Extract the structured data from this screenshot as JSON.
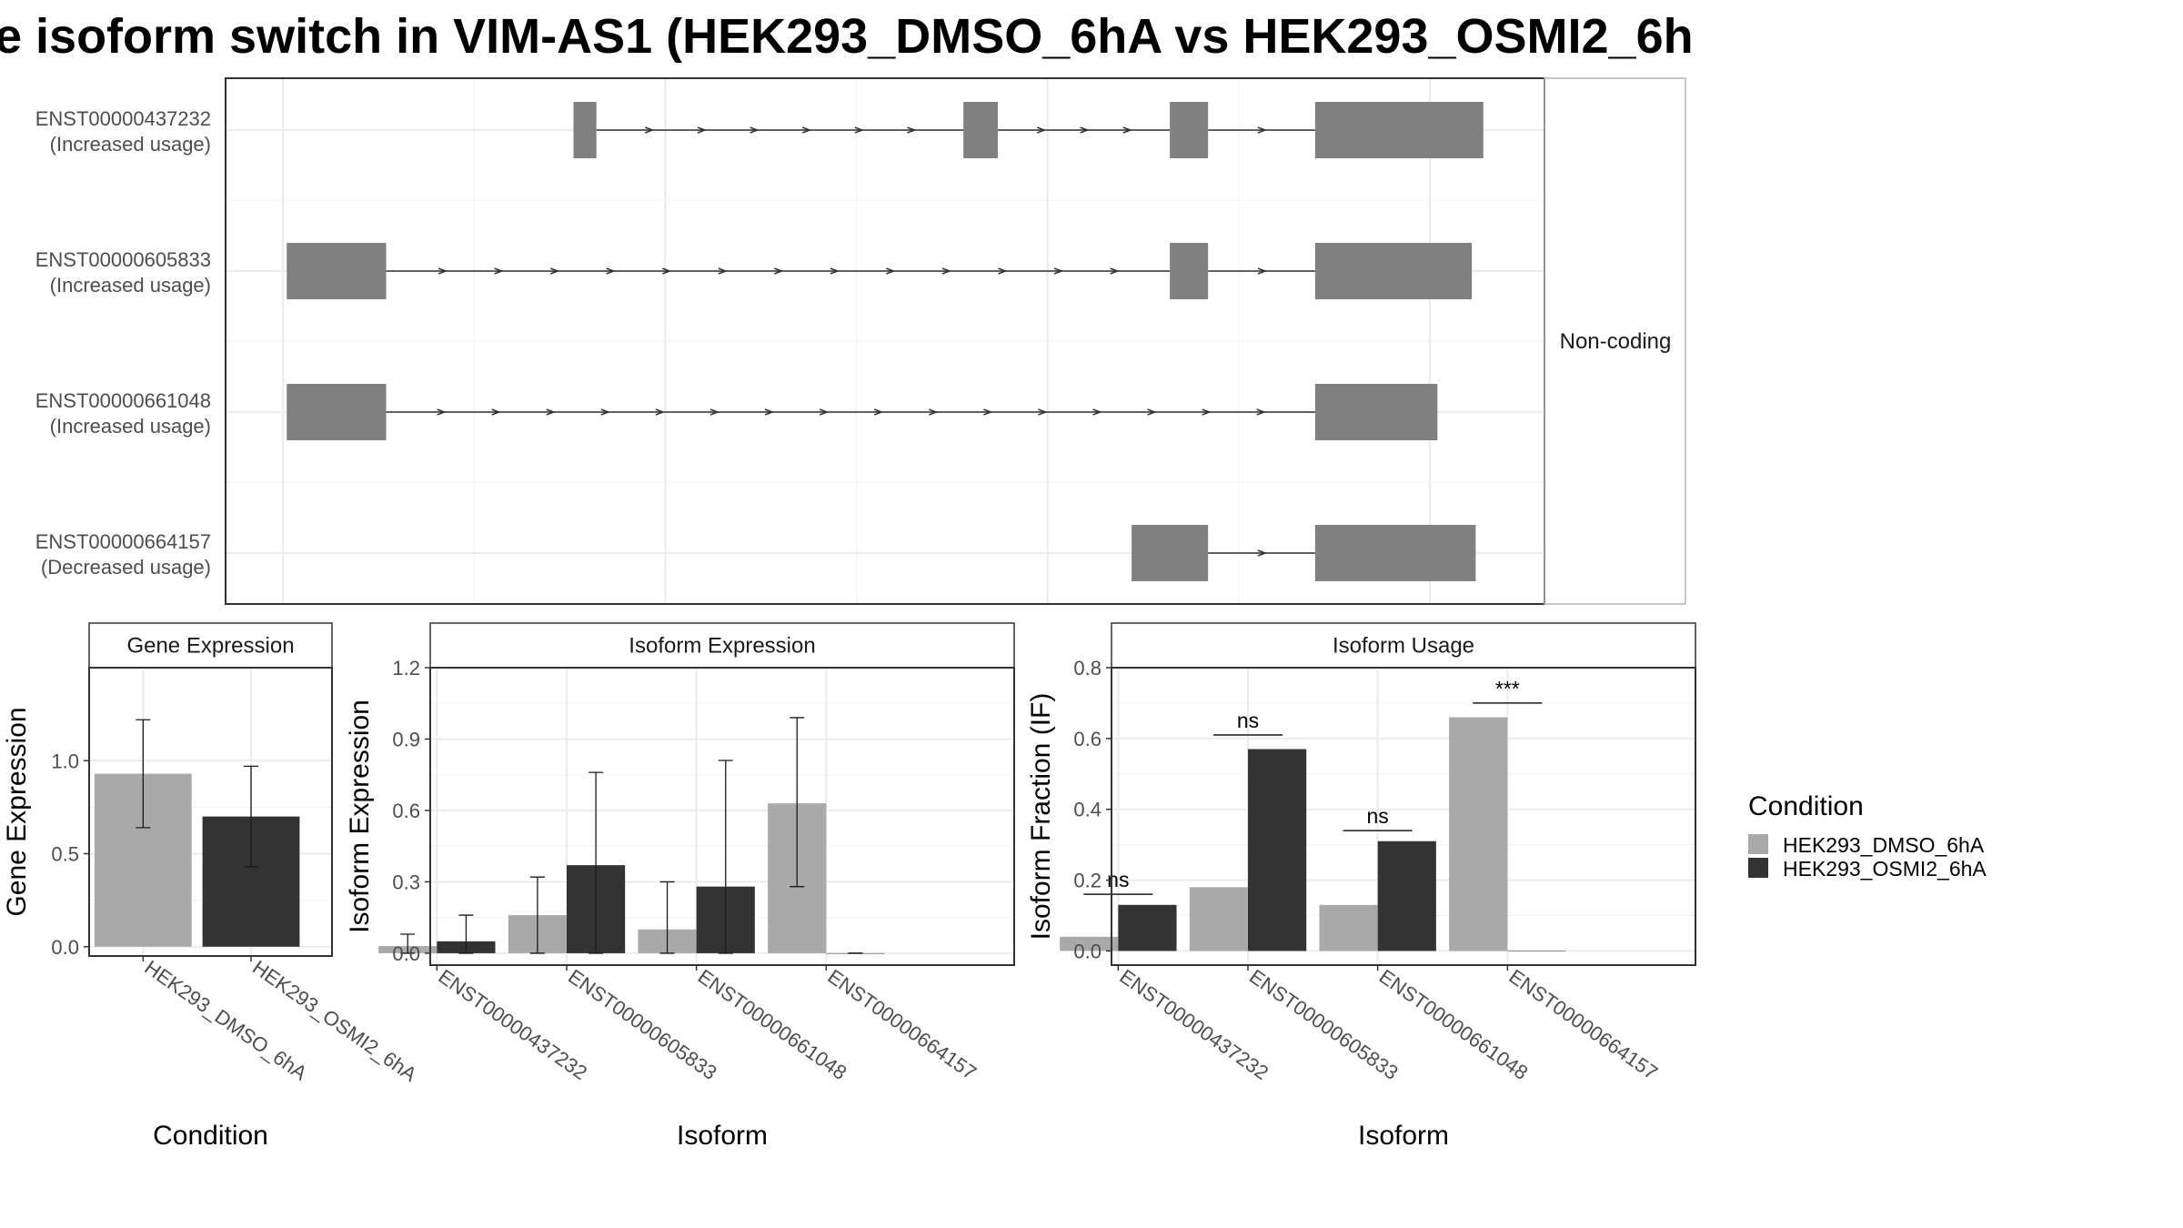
{
  "title": "e isoform switch in VIM-AS1 (HEK293_DMSO_6hA vs HEK293_OSMI2_6h",
  "colors": {
    "dmso": "#a9a9a9",
    "osmi2": "#333333",
    "exon": "#808080",
    "grid": "#ebebeb",
    "frame": "#333333",
    "strip_bg": "#ffffff"
  },
  "legend": {
    "title": "Condition",
    "items": [
      {
        "label": "HEK293_DMSO_6hA",
        "color": "#a9a9a9"
      },
      {
        "label": "HEK293_OSMI2_6hA",
        "color": "#333333"
      }
    ]
  },
  "chart_data": [
    {
      "type": "gene-structure",
      "panel_label": "Non-coding",
      "transcripts": [
        {
          "id": "ENST00000437232",
          "note": "(Increased usage)",
          "exons": [
            [
              0.76,
              0.82
            ],
            [
              1.78,
              1.87
            ],
            [
              2.32,
              2.42
            ],
            [
              2.7,
              3.14
            ]
          ]
        },
        {
          "id": "ENST00000605833",
          "note": "(Increased usage)",
          "exons": [
            [
              0.01,
              0.27
            ],
            [
              2.32,
              2.42
            ],
            [
              2.7,
              3.11
            ]
          ]
        },
        {
          "id": "ENST00000661048",
          "note": "(Increased usage)",
          "exons": [
            [
              0.01,
              0.27
            ],
            [
              2.7,
              3.02
            ]
          ]
        },
        {
          "id": "ENST00000664157",
          "note": "(Decreased usage)",
          "exons": [
            [
              2.22,
              2.42
            ],
            [
              2.7,
              3.12
            ]
          ]
        }
      ],
      "xlim": [
        -0.15,
        3.3
      ]
    },
    {
      "type": "bar",
      "panel_title": "Gene Expression",
      "xlabel": "Condition",
      "ylabel": "Gene Expression",
      "ylim": [
        -0.05,
        1.5
      ],
      "yticks": [
        "0.0",
        "0.5",
        "1.0"
      ],
      "categories": [
        "HEK293_DMSO_6hA",
        "HEK293_OSMI2_6hA"
      ],
      "values": [
        0.93,
        0.7
      ],
      "error_low": [
        0.64,
        0.43
      ],
      "error_high": [
        1.22,
        0.97
      ]
    },
    {
      "type": "bar",
      "panel_title": "Isoform Expression",
      "xlabel": "Isoform",
      "ylabel": "Isoform Expression",
      "ylim": [
        -0.05,
        1.2
      ],
      "yticks": [
        "0.0",
        "0.3",
        "0.6",
        "0.9",
        "1.2"
      ],
      "categories": [
        "ENST00000437232",
        "ENST00000605833",
        "ENST00000661048",
        "ENST00000664157"
      ],
      "series": [
        {
          "name": "HEK293_DMSO_6hA",
          "values": [
            0.03,
            0.16,
            0.1,
            0.63
          ],
          "error_low": [
            0.0,
            0.0,
            0.0,
            0.28
          ],
          "error_high": [
            0.08,
            0.32,
            0.3,
            0.99
          ]
        },
        {
          "name": "HEK293_OSMI2_6hA",
          "values": [
            0.05,
            0.37,
            0.28,
            0.0
          ],
          "error_low": [
            0.0,
            0.0,
            0.0,
            0.0
          ],
          "error_high": [
            0.16,
            0.76,
            0.81,
            0.0
          ]
        }
      ]
    },
    {
      "type": "bar",
      "panel_title": "Isoform Usage",
      "xlabel": "Isoform",
      "ylabel": "Isoform Fraction (IF)",
      "ylim": [
        -0.04,
        0.8
      ],
      "yticks": [
        "0.0",
        "0.2",
        "0.4",
        "0.6",
        "0.8"
      ],
      "categories": [
        "ENST00000437232",
        "ENST00000605833",
        "ENST00000661048",
        "ENST00000664157"
      ],
      "series": [
        {
          "name": "HEK293_DMSO_6hA",
          "values": [
            0.04,
            0.18,
            0.13,
            0.66
          ]
        },
        {
          "name": "HEK293_OSMI2_6hA",
          "values": [
            0.13,
            0.57,
            0.31,
            0.0
          ]
        }
      ],
      "significance": [
        "ns",
        "ns",
        "ns",
        "***"
      ],
      "sig_y": [
        0.16,
        0.61,
        0.34,
        0.7
      ]
    }
  ]
}
